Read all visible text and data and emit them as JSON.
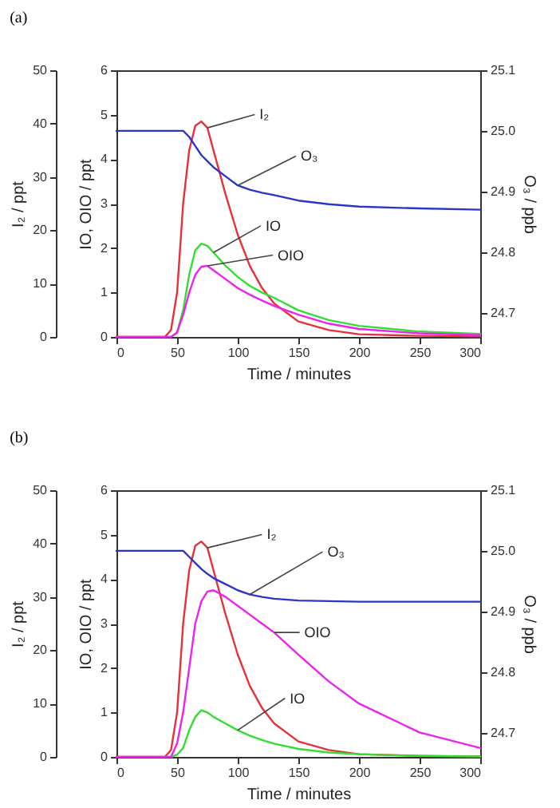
{
  "chart_data": [
    {
      "type": "line",
      "title": "(a)",
      "xlabel": "Time / minutes",
      "ylabel": "IO, OIO / ppt",
      "y2label": "I₂ / ppt",
      "y3label": "O₃ / ppb",
      "x": [
        0,
        40,
        45,
        50,
        55,
        60,
        65,
        70,
        75,
        80,
        90,
        100,
        110,
        120,
        130,
        150,
        175,
        200,
        250,
        300
      ],
      "xlim": [
        0,
        300
      ],
      "xticks": [
        0,
        50,
        100,
        150,
        200,
        250,
        300
      ],
      "ylim": [
        0,
        6
      ],
      "yticks": [
        0,
        1,
        2,
        3,
        4,
        5,
        6
      ],
      "y2lim": [
        0,
        50
      ],
      "y2ticks": [
        0,
        10,
        20,
        30,
        40,
        50
      ],
      "y3lim": [
        24.66,
        25.1
      ],
      "y3ticks": [
        24.7,
        24.8,
        24.9,
        {
          "value": 25,
          "label": "25.0"
        },
        25.1
      ],
      "grid": false,
      "marker": "none",
      "line_style": "solid",
      "series": [
        {
          "name": "I₂",
          "color": "#e8303a",
          "axis": "y2",
          "values": [
            0,
            0,
            1.3,
            8.3,
            25,
            35,
            39.6,
            40.4,
            39.2,
            35,
            26.7,
            19.2,
            13.3,
            9.2,
            6.3,
            2.9,
            1.3,
            0.5,
            0.2,
            0.1
          ]
        },
        {
          "name": "O₃",
          "color": "#2a36c8",
          "axis": "y3",
          "values": [
            25.0,
            25.0,
            25.0,
            25.0,
            25.0,
            24.99,
            24.975,
            24.96,
            24.95,
            24.94,
            24.925,
            24.91,
            24.903,
            24.898,
            24.894,
            24.885,
            24.879,
            24.875,
            24.872,
            24.87
          ]
        },
        {
          "name": "IO",
          "color": "#33dd33",
          "values": [
            null,
            null,
            0,
            0.1,
            0.6,
            1.4,
            1.95,
            2.1,
            2.05,
            1.9,
            1.6,
            1.35,
            1.15,
            1.0,
            0.88,
            0.6,
            0.38,
            0.25,
            0.12,
            0.07
          ]
        },
        {
          "name": "OIO",
          "color": "#ee22ee",
          "values": [
            0,
            0,
            0,
            0.1,
            0.5,
            1.0,
            1.4,
            1.58,
            1.6,
            1.5,
            1.3,
            1.1,
            0.95,
            0.82,
            0.7,
            0.5,
            0.3,
            0.18,
            0.08,
            0.04
          ]
        }
      ]
    },
    {
      "type": "line",
      "title": "(b)",
      "xlabel": "Time / minutes",
      "ylabel": "IO, OIO / ppt",
      "y2label": "I₂ / ppt",
      "y3label": "O₃ / ppb",
      "x": [
        0,
        40,
        45,
        50,
        55,
        60,
        65,
        70,
        75,
        80,
        90,
        100,
        110,
        120,
        130,
        150,
        175,
        200,
        250,
        300
      ],
      "xlim": [
        0,
        300
      ],
      "xticks": [
        0,
        50,
        100,
        150,
        200,
        250,
        300
      ],
      "ylim": [
        0,
        6
      ],
      "yticks": [
        0,
        1,
        2,
        3,
        4,
        5,
        6
      ],
      "y2lim": [
        0,
        50
      ],
      "y2ticks": [
        0,
        10,
        20,
        30,
        40,
        50
      ],
      "y3lim": [
        24.66,
        25.1
      ],
      "y3ticks": [
        24.7,
        24.8,
        24.9,
        {
          "value": 25,
          "label": "25.0"
        },
        25.1
      ],
      "grid": false,
      "marker": "none",
      "line_style": "solid",
      "series": [
        {
          "name": "I₂",
          "color": "#e8303a",
          "axis": "y2",
          "values": [
            0,
            0,
            1.3,
            8.3,
            25,
            35,
            39.6,
            40.4,
            39.2,
            35,
            26.7,
            19.2,
            13.3,
            9.2,
            6.3,
            2.9,
            1.3,
            0.5,
            0.2,
            0.1
          ]
        },
        {
          "name": "O₃",
          "color": "#2a36c8",
          "axis": "y3",
          "values": [
            25.0,
            25.0,
            25.0,
            25.0,
            25.0,
            24.99,
            24.98,
            24.97,
            24.962,
            24.955,
            24.945,
            24.935,
            24.928,
            24.924,
            24.921,
            24.918,
            24.917,
            24.916,
            24.916,
            24.916
          ]
        },
        {
          "name": "IO",
          "color": "#33dd33",
          "values": [
            null,
            null,
            0,
            0.05,
            0.2,
            0.6,
            0.9,
            1.05,
            1.0,
            0.9,
            0.75,
            0.6,
            0.48,
            0.38,
            0.3,
            0.18,
            0.1,
            0.06,
            0.02,
            0.01
          ]
        },
        {
          "name": "OIO",
          "color": "#ee22ee",
          "values": [
            0,
            0,
            0,
            0.3,
            1.0,
            2.0,
            3.0,
            3.5,
            3.72,
            3.75,
            3.6,
            3.4,
            3.2,
            3.0,
            2.8,
            2.3,
            1.7,
            1.2,
            0.55,
            0.2
          ]
        }
      ]
    }
  ]
}
